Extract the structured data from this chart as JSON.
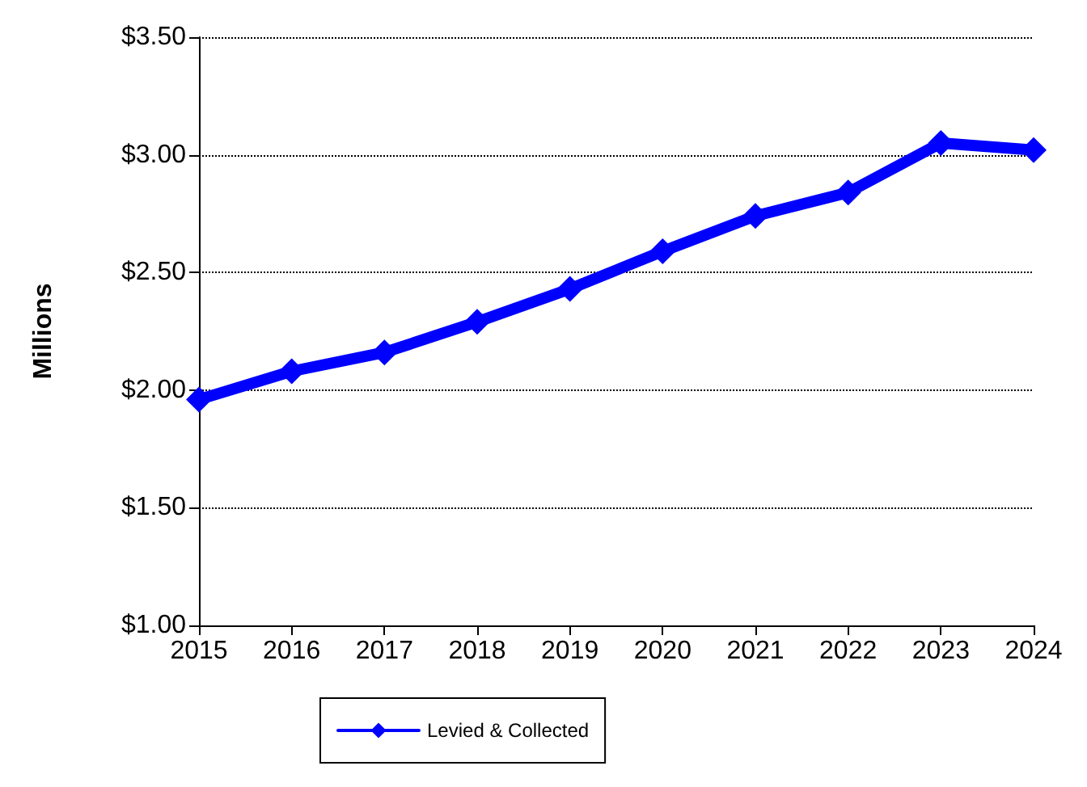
{
  "chart_data": {
    "type": "line",
    "ylabel": "Millions",
    "categories": [
      "2015",
      "2016",
      "2017",
      "2018",
      "2019",
      "2020",
      "2021",
      "2022",
      "2023",
      "2024"
    ],
    "series": [
      {
        "name": "Levied & Collected",
        "color": "#0000ff",
        "values": [
          1.96,
          2.08,
          2.16,
          2.29,
          2.43,
          2.59,
          2.74,
          2.84,
          3.05,
          3.02
        ]
      }
    ],
    "ylim": [
      1,
      3.5
    ],
    "yticks": [
      {
        "value": 1,
        "label": "$1.00"
      },
      {
        "value": 1.5,
        "label": "$1.50"
      },
      {
        "value": 2,
        "label": "$2.00"
      },
      {
        "value": 2.5,
        "label": "$2.50"
      },
      {
        "value": 3,
        "label": "$3.00"
      },
      {
        "value": 3.5,
        "label": "$3.50"
      }
    ],
    "grid": "y",
    "legend": "bottom",
    "marker": "diamond",
    "line_style": "solid"
  }
}
